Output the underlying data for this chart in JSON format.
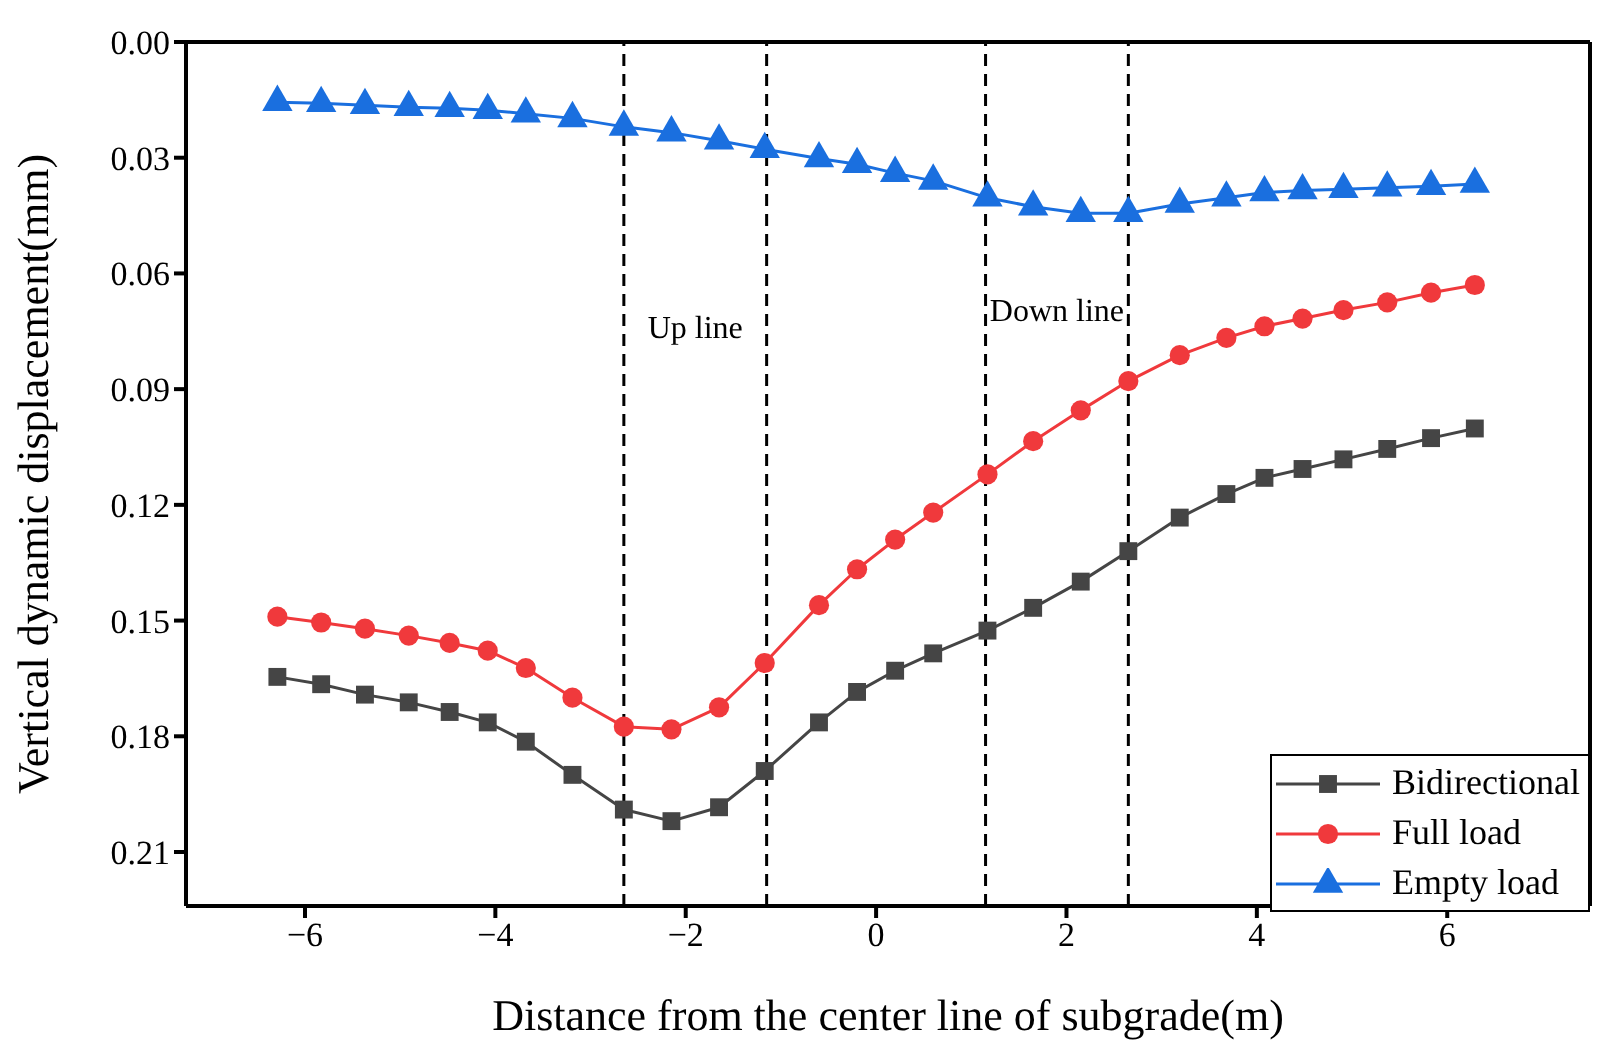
{
  "chart_data": {
    "type": "line",
    "xlabel": "Distance from the center line of subgrade(m)",
    "ylabel": "Vertical dynamic displacement(mm)",
    "x": [
      -6.29,
      -5.83,
      -5.37,
      -4.91,
      -4.48,
      -4.08,
      -3.68,
      -3.19,
      -2.65,
      -2.15,
      -1.65,
      -1.17,
      -0.6,
      -0.2,
      0.2,
      0.6,
      1.17,
      1.65,
      2.15,
      2.65,
      3.19,
      3.68,
      4.08,
      4.48,
      4.91,
      5.37,
      5.83,
      6.29
    ],
    "series": [
      {
        "name": "Bidirectional",
        "color": "#454545",
        "marker": "square",
        "values": [
          0.1646,
          0.1665,
          0.1692,
          0.1712,
          0.1737,
          0.1764,
          0.1814,
          0.19,
          0.199,
          0.202,
          0.1984,
          0.189,
          0.1764,
          0.1685,
          0.163,
          0.1585,
          0.1526,
          0.1467,
          0.1399,
          0.132,
          0.1233,
          0.1172,
          0.113,
          0.1107,
          0.1082,
          0.1055,
          0.1027,
          0.1002
        ]
      },
      {
        "name": "Full load",
        "color": "#f0393c",
        "marker": "circle",
        "values": [
          0.149,
          0.1505,
          0.1521,
          0.1539,
          0.1558,
          0.1578,
          0.1623,
          0.17,
          0.1775,
          0.1782,
          0.1725,
          0.161,
          0.146,
          0.1367,
          0.129,
          0.122,
          0.1121,
          0.1035,
          0.0955,
          0.0879,
          0.0812,
          0.0767,
          0.0737,
          0.0717,
          0.0695,
          0.0675,
          0.065,
          0.063
        ]
      },
      {
        "name": "Empty load",
        "color": "#1a6fdf",
        "marker": "triangle",
        "values": [
          0.0156,
          0.0159,
          0.0164,
          0.0169,
          0.0172,
          0.0177,
          0.0186,
          0.0198,
          0.022,
          0.0235,
          0.0256,
          0.0278,
          0.0302,
          0.0317,
          0.034,
          0.036,
          0.0404,
          0.0427,
          0.0444,
          0.0444,
          0.042,
          0.0404,
          0.039,
          0.0385,
          0.0382,
          0.0378,
          0.0374,
          0.0368
        ]
      }
    ],
    "xlim": [
      -7.25,
      7.5
    ],
    "xticks": [
      {
        "value": -6,
        "label": "−6"
      },
      {
        "value": -4,
        "label": "−4"
      },
      {
        "value": -2,
        "label": "−2"
      },
      0,
      2,
      4,
      6
    ],
    "ylim": [
      0.224,
      0
    ],
    "yticks": [
      {
        "value": 0,
        "label": "0.00"
      },
      {
        "value": 0.03,
        "label": "0.03"
      },
      {
        "value": 0.06,
        "label": "0.06"
      },
      {
        "value": 0.09,
        "label": "0.09"
      },
      {
        "value": 0.12,
        "label": "0.12"
      },
      {
        "value": 0.15,
        "label": "0.15"
      },
      {
        "value": 0.18,
        "label": "0.18"
      },
      {
        "value": 0.21,
        "label": "0.21"
      }
    ],
    "ref_lines": [
      {
        "axis": "x",
        "value": -2.65,
        "color": "#000000",
        "line_style": "dashed"
      },
      {
        "axis": "x",
        "value": -1.15,
        "color": "#000000",
        "line_style": "dashed"
      },
      {
        "axis": "x",
        "value": 1.15,
        "color": "#000000",
        "line_style": "dashed"
      },
      {
        "axis": "x",
        "value": 2.65,
        "color": "#000000",
        "line_style": "dashed"
      }
    ],
    "annotations": [
      "Up line",
      "Down line"
    ],
    "grid": false,
    "legend": "bottom right",
    "line_style": "solid"
  }
}
